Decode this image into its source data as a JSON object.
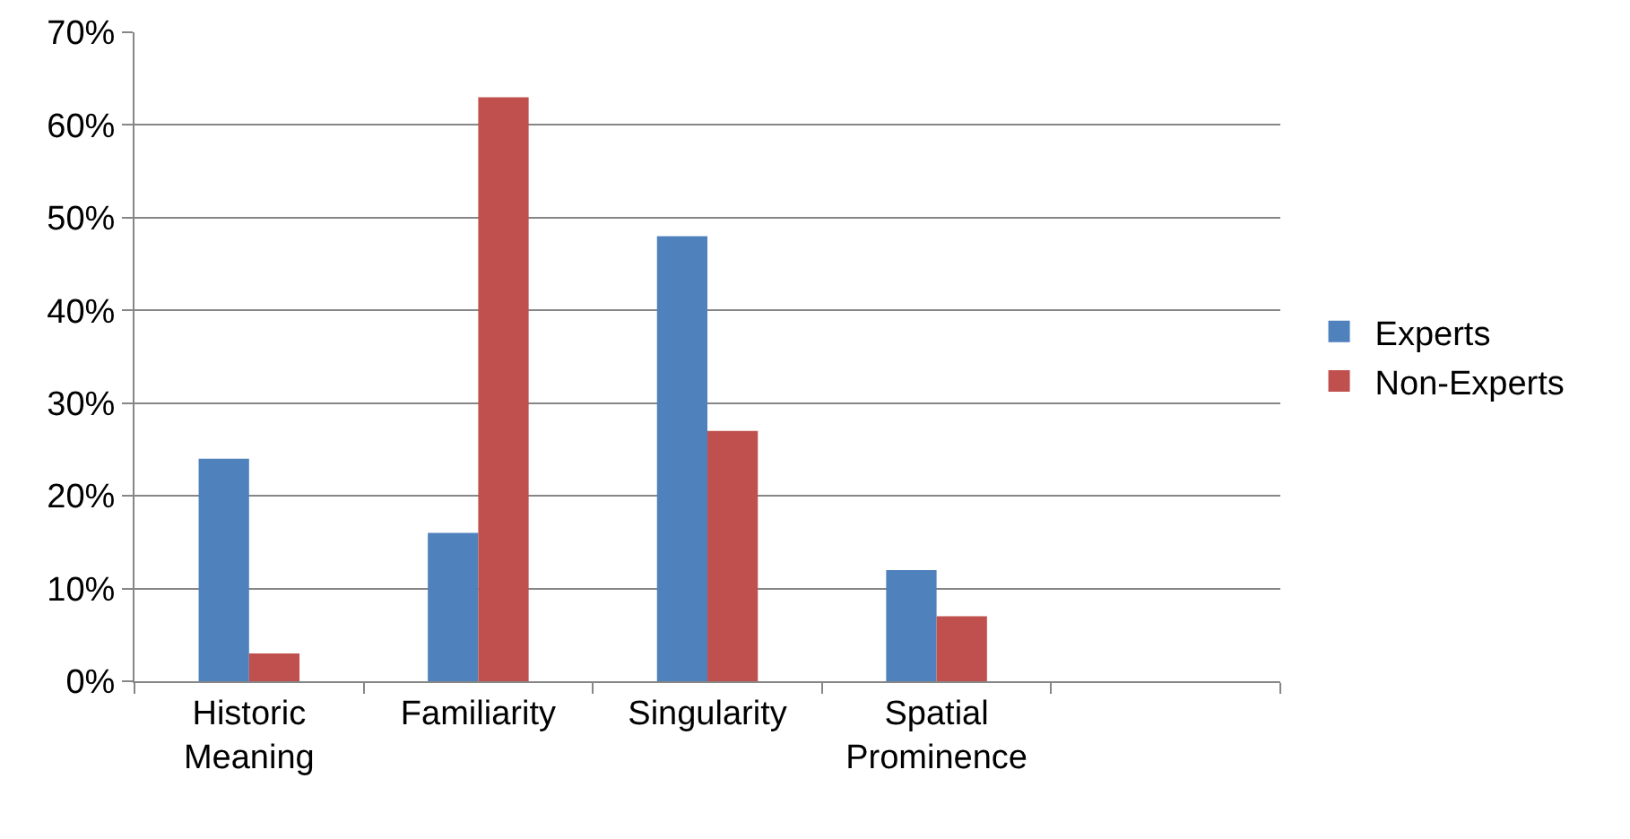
{
  "chart_data": {
    "type": "bar",
    "categories": [
      "Historic Meaning",
      "Familiarity",
      "Singularity",
      "Spatial Prominence",
      null
    ],
    "series": [
      {
        "name": "Experts",
        "color": "#4f81bd",
        "values": [
          24,
          16,
          48,
          12,
          null
        ]
      },
      {
        "name": "Non-Experts",
        "color": "#c0504d",
        "values": [
          3,
          63,
          27,
          7,
          null
        ]
      }
    ],
    "ylim": [
      0,
      70
    ],
    "yticks": [
      {
        "value": 0,
        "label": "0%"
      },
      {
        "value": 10,
        "label": "10%"
      },
      {
        "value": 20,
        "label": "20%"
      },
      {
        "value": 30,
        "label": "30%"
      },
      {
        "value": 40,
        "label": "40%"
      },
      {
        "value": 50,
        "label": "50%"
      },
      {
        "value": 60,
        "label": "60%"
      },
      {
        "value": 70,
        "label": "70%"
      }
    ],
    "grid": "y",
    "legend": "right"
  }
}
